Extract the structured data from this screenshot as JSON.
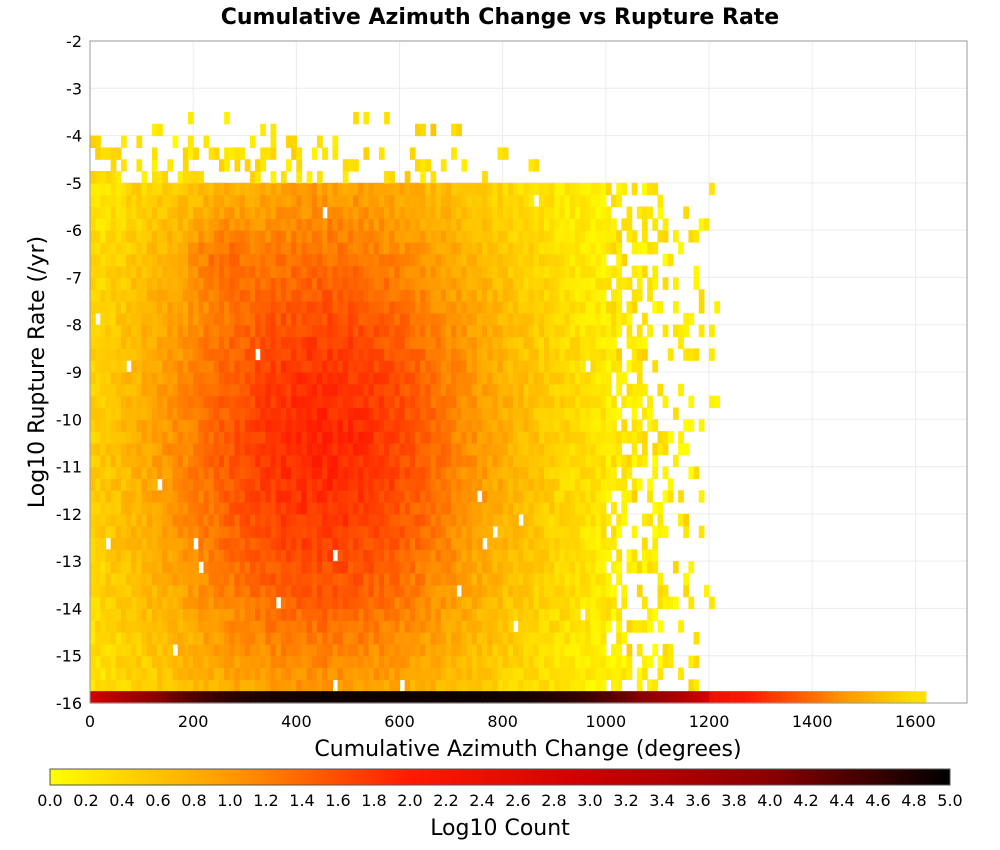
{
  "chart_data": {
    "type": "heatmap",
    "title": "Cumulative Azimuth Change vs Rupture Rate",
    "xlabel": "Cumulative Azimuth Change (degrees)",
    "ylabel": "Log10 Rupture Rate (/yr)",
    "xlim": [
      0,
      1700
    ],
    "ylim": [
      -16,
      -2
    ],
    "x_ticks": [
      "0",
      "200",
      "400",
      "600",
      "800",
      "1000",
      "1200",
      "1400",
      "1600"
    ],
    "y_ticks": [
      "-2",
      "-3",
      "-4",
      "-5",
      "-6",
      "-7",
      "-8",
      "-9",
      "-10",
      "-11",
      "-12",
      "-13",
      "-14",
      "-15",
      "-16"
    ],
    "bin_width_x": 10,
    "bin_height_y": 0.25,
    "grid": true,
    "colorbar": {
      "label": "Log10 Count",
      "range": [
        0.0,
        5.0
      ],
      "ticks": [
        "0.0",
        "0.2",
        "0.4",
        "0.6",
        "0.8",
        "1.0",
        "1.2",
        "1.4",
        "1.6",
        "1.8",
        "2.0",
        "2.2",
        "2.4",
        "2.6",
        "2.8",
        "3.0",
        "3.2",
        "3.4",
        "3.6",
        "3.8",
        "4.0",
        "4.2",
        "4.4",
        "4.6",
        "4.8",
        "5.0"
      ],
      "colors": [
        "#ffff00",
        "#ff9900",
        "#ff1a00",
        "#cc0000",
        "#8a0000",
        "#000000"
      ]
    },
    "density_summary": {
      "peak_x": 450,
      "peak_y": -10.5,
      "peak_log10_count": 1.9,
      "secondary_peak": {
        "x": 250,
        "y": -6.5,
        "log10_count": 2.1
      },
      "bottom_row_y": -16,
      "bottom_row_peak_log10_count": 4.9,
      "bottom_row_max_x": 1620,
      "upper_edge_y": -5,
      "main_extent_x": 1000
    }
  }
}
